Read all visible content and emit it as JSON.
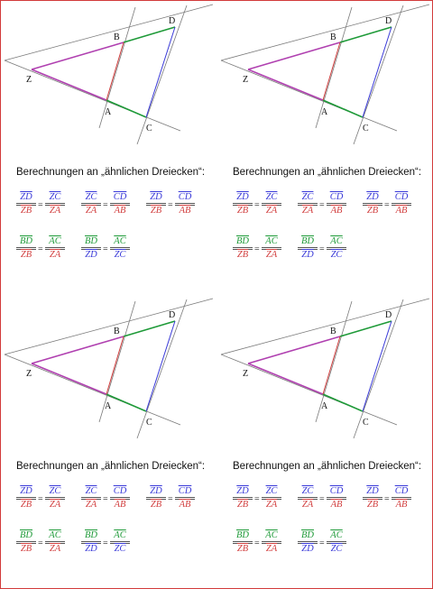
{
  "heading": "Berechnungen an „ähnlichen Dreiecken“:",
  "points": {
    "Z": "Z",
    "A": "A",
    "B": "B",
    "C": "C",
    "D": "D"
  },
  "colors": {
    "blue": "#3a3ad8",
    "red": "#d24040",
    "green": "#1e9a38",
    "magenta": "#b040b0",
    "line": "#777777"
  },
  "ratios_row1": [
    {
      "left": {
        "num": "ZD",
        "num_color": "blue",
        "den": "ZB",
        "den_color": "red"
      },
      "right": {
        "num": "ZC",
        "num_color": "blue",
        "den": "ZA",
        "den_color": "red"
      }
    },
    {
      "left": {
        "num": "ZC",
        "num_color": "blue",
        "den": "ZA",
        "den_color": "red"
      },
      "right": {
        "num": "CD",
        "num_color": "blue",
        "den": "AB",
        "den_color": "red"
      }
    },
    {
      "left": {
        "num": "ZD",
        "num_color": "blue",
        "den": "ZB",
        "den_color": "red"
      },
      "right": {
        "num": "CD",
        "num_color": "blue",
        "den": "AB",
        "den_color": "red"
      }
    }
  ],
  "ratios_row2": [
    {
      "left": {
        "num": "BD",
        "num_color": "green",
        "den": "ZB",
        "den_color": "red"
      },
      "right": {
        "num": "AC",
        "num_color": "green",
        "den": "ZA",
        "den_color": "red"
      }
    },
    {
      "left": {
        "num": "BD",
        "num_color": "green",
        "den": "ZD",
        "den_color": "blue"
      },
      "right": {
        "num": "AC",
        "num_color": "green",
        "den": "ZC",
        "den_color": "blue"
      }
    }
  ],
  "equals": "="
}
